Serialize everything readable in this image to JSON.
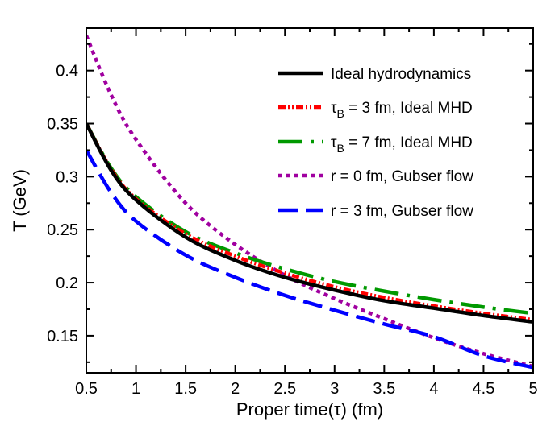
{
  "chart_data": {
    "type": "line",
    "xlabel": "Proper time(τ) (fm)",
    "ylabel": "T (GeV)",
    "xlim": [
      0.5,
      5
    ],
    "ylim": [
      0.115,
      0.44
    ],
    "xticks": [
      0.5,
      1,
      1.5,
      2,
      2.5,
      3,
      3.5,
      4,
      4.5,
      5
    ],
    "xtick_labels": [
      "0.5",
      "1",
      "1.5",
      "2",
      "2.5",
      "3",
      "3.5",
      "4",
      "4.5",
      "5"
    ],
    "yticks": [
      0.15,
      0.2,
      0.25,
      0.3,
      0.35,
      0.4
    ],
    "ytick_labels": [
      "0.15",
      "0.2",
      "0.25",
      "0.3",
      "0.35",
      "0.4"
    ],
    "legend_position": "top-right",
    "series": [
      {
        "name": "Ideal hydrodynamics",
        "legend_sub": "",
        "legend_rest": "",
        "color": "#000000",
        "style": "solid",
        "x": [
          0.5,
          0.75,
          1.0,
          1.5,
          2.0,
          2.5,
          3.0,
          3.5,
          4.0,
          4.5,
          5.0
        ],
        "y": [
          0.35,
          0.306,
          0.278,
          0.243,
          0.221,
          0.205,
          0.193,
          0.183,
          0.176,
          0.169,
          0.163
        ]
      },
      {
        "name": "τ",
        "legend_sub": "B",
        "legend_rest": " = 3 fm, Ideal MHD",
        "color": "#ff0000",
        "style": "dotdash",
        "x": [
          0.5,
          0.75,
          1.0,
          1.5,
          2.0,
          2.5,
          3.0,
          3.5,
          4.0,
          4.5,
          5.0
        ],
        "y": [
          0.35,
          0.307,
          0.279,
          0.246,
          0.225,
          0.209,
          0.196,
          0.186,
          0.178,
          0.171,
          0.165
        ]
      },
      {
        "name": "τ",
        "legend_sub": "B",
        "legend_rest": " = 7 fm, Ideal MHD",
        "color": "#009900",
        "style": "dashdot",
        "x": [
          0.5,
          0.75,
          1.0,
          1.5,
          2.0,
          2.5,
          3.0,
          3.5,
          4.0,
          4.5,
          5.0
        ],
        "y": [
          0.35,
          0.308,
          0.281,
          0.248,
          0.228,
          0.213,
          0.201,
          0.192,
          0.184,
          0.177,
          0.171
        ]
      },
      {
        "name": "r = 0 fm, Gubser flow",
        "legend_sub": "",
        "legend_rest": "",
        "color": "#a000a0",
        "style": "dotted",
        "x": [
          0.5,
          0.75,
          1.0,
          1.5,
          2.0,
          2.5,
          3.0,
          3.5,
          4.0,
          4.5,
          5.0
        ],
        "y": [
          0.433,
          0.377,
          0.335,
          0.275,
          0.236,
          0.207,
          0.185,
          0.166,
          0.148,
          0.133,
          0.121
        ]
      },
      {
        "name": "r = 3 fm, Gubser flow",
        "legend_sub": "",
        "legend_rest": "",
        "color": "#0000ff",
        "style": "dashed",
        "x": [
          0.5,
          0.75,
          1.0,
          1.5,
          2.0,
          2.5,
          3.0,
          3.5,
          4.0,
          4.5,
          5.0
        ],
        "y": [
          0.325,
          0.285,
          0.258,
          0.226,
          0.205,
          0.188,
          0.174,
          0.161,
          0.149,
          0.131,
          0.12
        ]
      }
    ]
  }
}
